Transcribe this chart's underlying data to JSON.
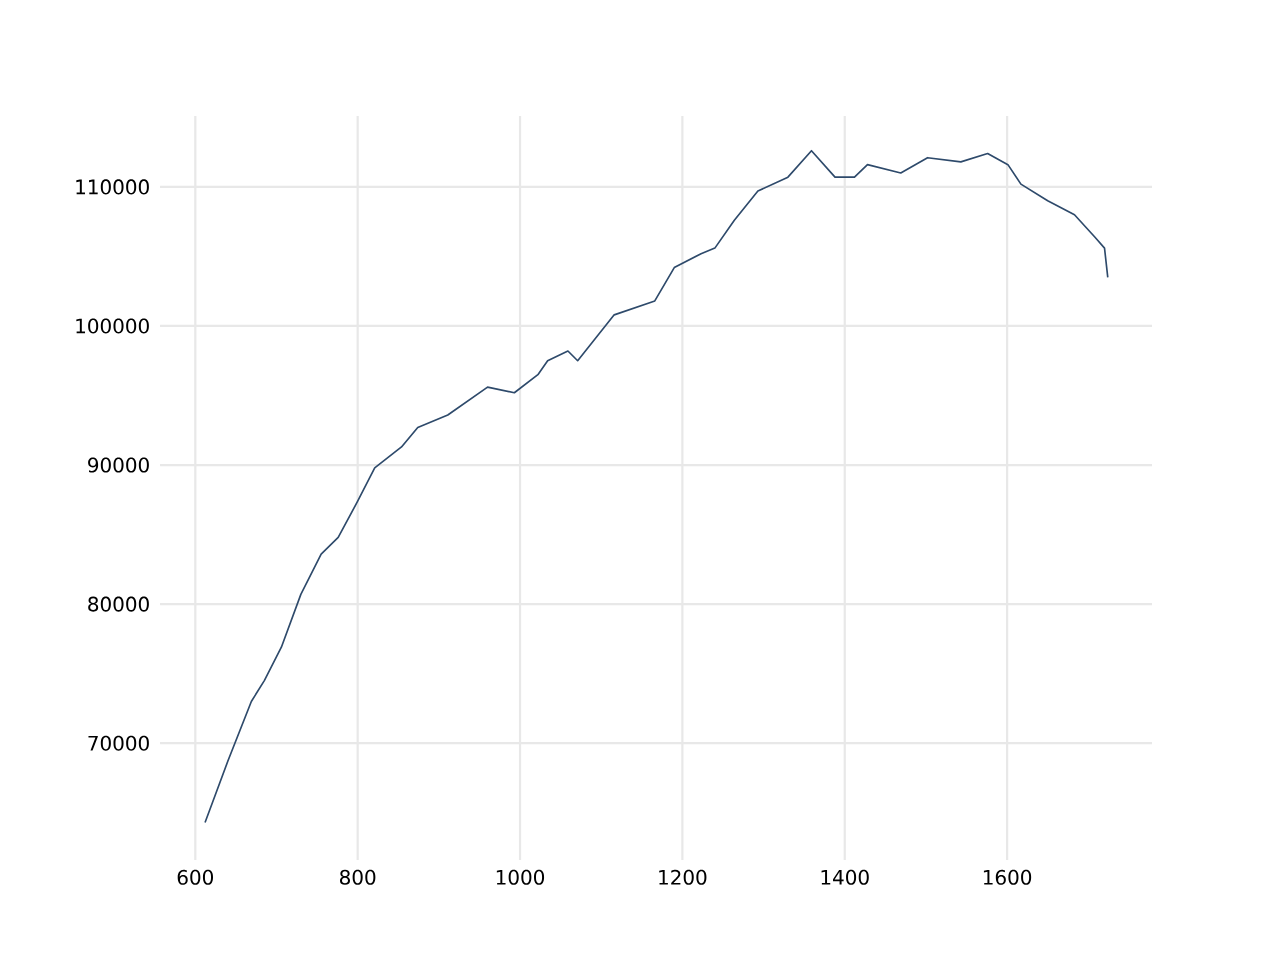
{
  "chart_data": {
    "type": "line",
    "x": [
      612,
      640,
      669,
      685,
      706,
      730,
      755,
      776,
      800,
      821,
      854,
      874,
      911,
      960,
      993,
      1022,
      1034,
      1059,
      1071,
      1116,
      1166,
      1190,
      1223,
      1240,
      1264,
      1293,
      1330,
      1359,
      1388,
      1412,
      1428,
      1469,
      1502,
      1543,
      1576,
      1601,
      1617,
      1650,
      1683,
      1708,
      1720,
      1724
    ],
    "series": [
      {
        "color": "#2e4a6b",
        "values": [
          64300,
          68700,
          73000,
          74500,
          76900,
          80700,
          83600,
          84800,
          87400,
          89800,
          91300,
          92700,
          93600,
          95600,
          95200,
          96500,
          97500,
          98200,
          97500,
          100800,
          101800,
          104200,
          105200,
          105600,
          107600,
          109700,
          110700,
          112600,
          110700,
          110700,
          111600,
          111000,
          112100,
          111800,
          112400,
          111600,
          110200,
          109000,
          108000,
          106400,
          105600,
          103500
        ]
      }
    ],
    "xlim": [
      556.5,
      1778.5
    ],
    "ylim": [
      61600,
      115100
    ],
    "xticks": [
      600,
      800,
      1000,
      1200,
      1400,
      1600
    ],
    "yticks": [
      70000,
      80000,
      90000,
      100000,
      110000
    ],
    "grid": true,
    "line_style": "solid",
    "marker": "none"
  }
}
